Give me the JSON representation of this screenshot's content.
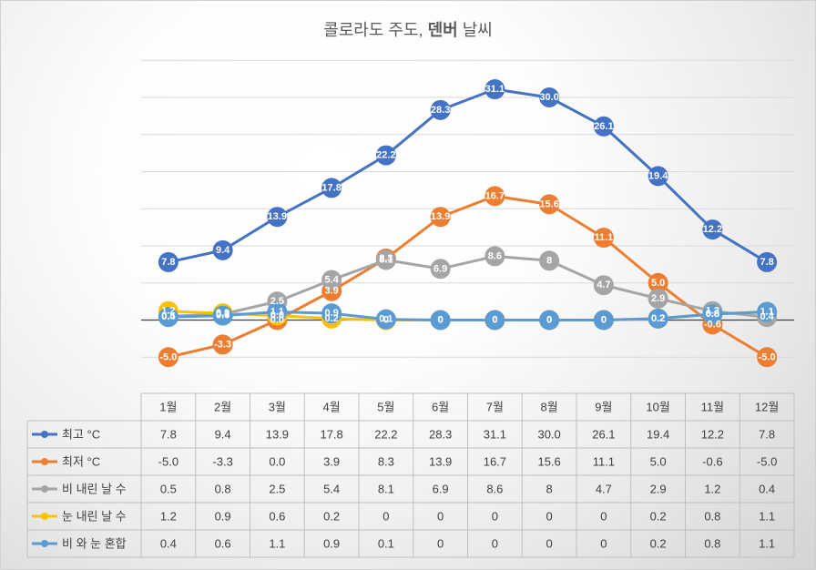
{
  "chart_data": {
    "type": "line",
    "title_parts": [
      {
        "text": "콜로라도 주도, ",
        "bold": false
      },
      {
        "text": "덴버",
        "bold": true
      },
      {
        "text": " 날씨",
        "bold": false
      }
    ],
    "categories": [
      "1월",
      "2월",
      "3월",
      "4월",
      "5월",
      "6월",
      "7월",
      "8월",
      "9월",
      "10월",
      "11월",
      "12월"
    ],
    "ylim": [
      -5,
      35
    ],
    "grid": true,
    "legend": "bottom",
    "data_labels": true,
    "series": [
      {
        "name": "최고 °C",
        "color": "#4472C4",
        "values": [
          7.8,
          9.4,
          13.9,
          17.8,
          22.2,
          28.3,
          31.1,
          30.0,
          26.1,
          19.4,
          12.2,
          7.8
        ],
        "labels": [
          "7.8",
          "9.4",
          "13.9",
          "17.8",
          "22.2",
          "28.3",
          "31.1",
          "30.0",
          "26.1",
          "19.4",
          "12.2",
          "7.8"
        ]
      },
      {
        "name": "최저 °C",
        "color": "#ED7D31",
        "values": [
          -5.0,
          -3.3,
          0.0,
          3.9,
          8.3,
          13.9,
          16.7,
          15.6,
          11.1,
          5.0,
          -0.6,
          -5.0
        ],
        "labels": [
          "-5.0",
          "-3.3",
          "0.0",
          "3.9",
          "8.3",
          "13.9",
          "16.7",
          "15.6",
          "11.1",
          "5.0",
          "-0.6",
          "-5.0"
        ]
      },
      {
        "name": "비 내린 날 수",
        "color": "#A5A5A5",
        "values": [
          0.5,
          0.8,
          2.5,
          5.4,
          8.1,
          6.9,
          8.6,
          8,
          4.7,
          2.9,
          1.2,
          0.4
        ],
        "labels": [
          "0.5",
          "0.8",
          "2.5",
          "5.4",
          "8.1",
          "6.9",
          "8.6",
          "8",
          "4.7",
          "2.9",
          "1.2",
          "0.4"
        ]
      },
      {
        "name": "눈 내린 날 수",
        "color": "#FFC000",
        "values": [
          1.2,
          0.9,
          0.6,
          0.2,
          0,
          0,
          0,
          0,
          0,
          0.2,
          0.8,
          1.1
        ],
        "labels": [
          "1.2",
          "0.9",
          "0.6",
          "0.2",
          "0",
          "0",
          "0",
          "0",
          "0",
          "0.2",
          "0.8",
          "1.1"
        ]
      },
      {
        "name": "비 와 눈 혼합",
        "color": "#5B9BD5",
        "values": [
          0.4,
          0.6,
          1.1,
          0.9,
          0.1,
          0,
          0,
          0,
          0,
          0.2,
          0.8,
          1.1
        ],
        "labels": [
          "0.4",
          "0.6",
          "1.1",
          "0.9",
          "0.1",
          "0",
          "0",
          "0",
          "0",
          "0.2",
          "0.8",
          "1.1"
        ]
      }
    ]
  }
}
